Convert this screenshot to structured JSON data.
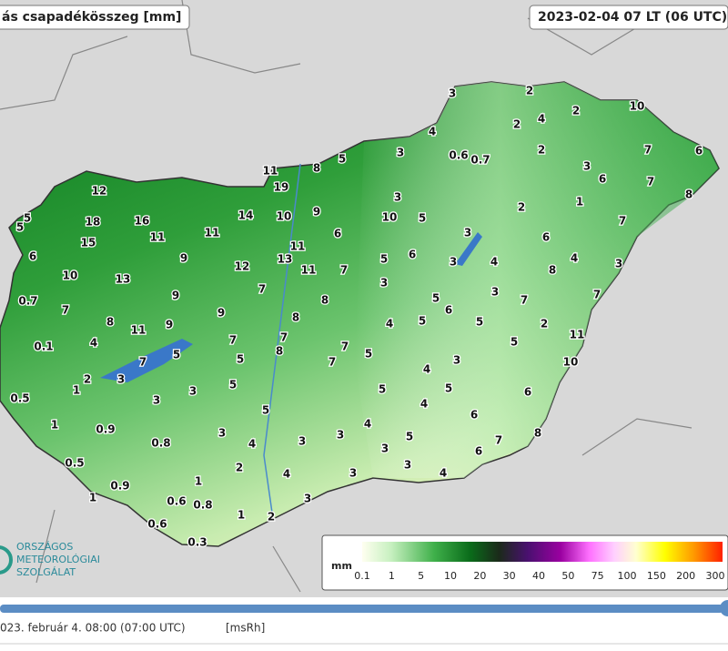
{
  "header": {
    "title": "ás csapadékösszeg [mm]",
    "time": "2023-02-04 07 LT (06 UTC)"
  },
  "stations": [
    "3",
    "2",
    "2",
    "4",
    "2",
    "10",
    "4",
    "0.6",
    "0.7",
    "2",
    "7",
    "6",
    "5",
    "3",
    "8",
    "11",
    "3",
    "6",
    "7",
    "8",
    "19",
    "12",
    "3",
    "1",
    "2",
    "5",
    "5",
    "18",
    "16",
    "14",
    "10",
    "9",
    "10",
    "5",
    "7",
    "15",
    "11",
    "11",
    "6",
    "3",
    "6",
    "6",
    "11",
    "13",
    "9",
    "12",
    "11",
    "7",
    "5",
    "6",
    "3",
    "4",
    "4",
    "8",
    "3",
    "10",
    "13",
    "3",
    "3",
    "7",
    "0.7",
    "7",
    "9",
    "7",
    "8",
    "5",
    "6",
    "7",
    "8",
    "11",
    "9",
    "9",
    "8",
    "4",
    "5",
    "5",
    "2",
    "4",
    "7",
    "7",
    "7",
    "5",
    "11",
    "0.1",
    "7",
    "5",
    "8",
    "5",
    "7",
    "3",
    "10",
    "2",
    "5",
    "3",
    "5",
    "1",
    "3",
    "5",
    "4",
    "5",
    "6",
    "0.5",
    "3",
    "5",
    "4",
    "6",
    "1",
    "0.9",
    "3",
    "3",
    "4",
    "3",
    "5",
    "3",
    "8",
    "0.8",
    "4",
    "7",
    "6",
    "3",
    "0.5",
    "2",
    "4",
    "3",
    "4",
    "0.9",
    "1",
    "1",
    "0.6",
    "0.8",
    "3",
    "1",
    "2",
    "0.6",
    "0.3"
  ],
  "legend": {
    "unit": "mm",
    "labels": [
      "0.1",
      "1",
      "5",
      "10",
      "20",
      "30",
      "40",
      "50",
      "75",
      "100",
      "150",
      "200",
      "300"
    ]
  },
  "logo": {
    "lines": [
      "ORSZÁGOS",
      "METEOROLÓGIAI",
      "SZOLGÁLAT"
    ]
  },
  "footer": {
    "time": "023. február 4. 08:00 (07:00  UTC)",
    "source": "[msRh]"
  }
}
